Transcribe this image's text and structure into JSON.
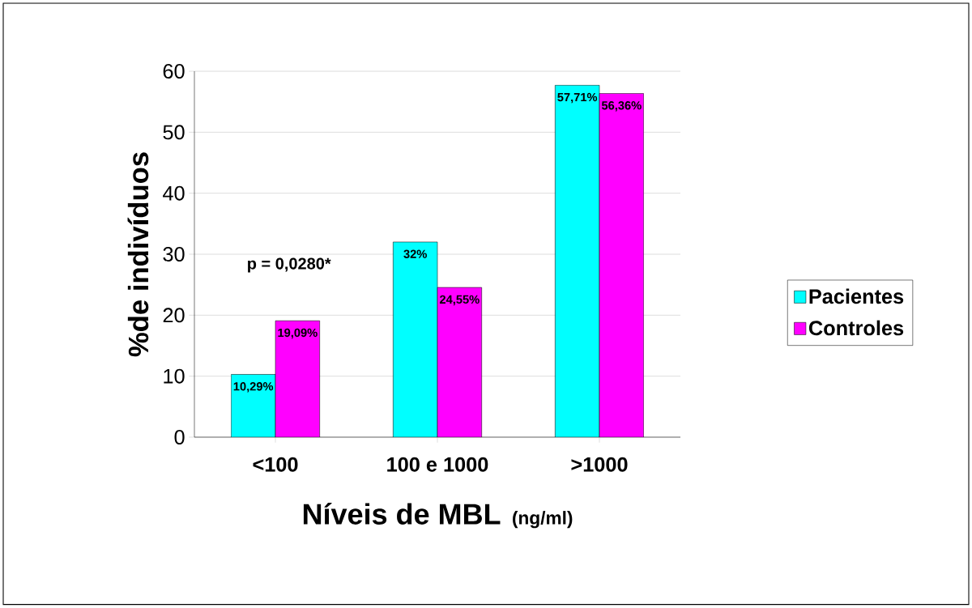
{
  "chart_data": {
    "type": "bar",
    "categories": [
      "<100",
      "100 e 1000",
      ">1000"
    ],
    "xlabel": "Níveis de MBL",
    "ylabel": "%de indivíduos",
    "annotations": [
      "p = 0,0280*",
      "(ng/ml)"
    ],
    "series": [
      {
        "name": "Pacientes",
        "color": "#00ffff",
        "values": [
          10.29,
          32,
          57.71
        ],
        "value_labels": [
          "10,29%",
          "32%",
          "57,71%"
        ]
      },
      {
        "name": "Controles",
        "color": "#ff00ff",
        "values": [
          19.09,
          24.55,
          56.36
        ],
        "value_labels": [
          "19,09%",
          "24,55%",
          "56,36%"
        ]
      }
    ],
    "ylim": [
      0,
      60
    ],
    "yticks": [
      0,
      10,
      20,
      30,
      40,
      50,
      60
    ],
    "grid": "y",
    "legend": "right"
  }
}
